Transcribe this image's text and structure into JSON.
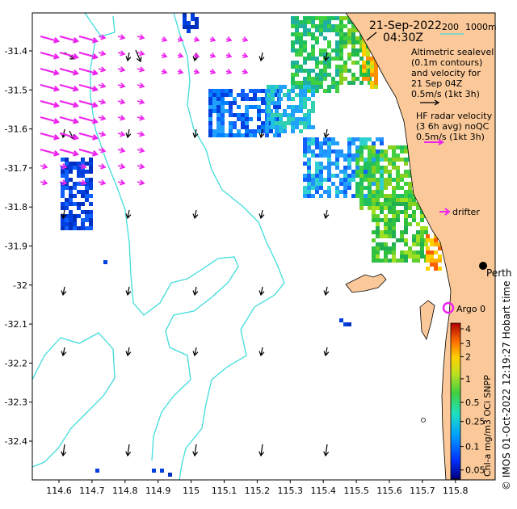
{
  "map": {
    "date": "21-Sep-2022",
    "time": "04:30Z",
    "lon_ticks": [
      "114.6",
      "114.7",
      "114.8",
      "114.9",
      "115",
      "115.1",
      "115.2",
      "115.3",
      "115.4",
      "115.5",
      "115.6",
      "115.7",
      "115.8"
    ],
    "lat_ticks": [
      "-31.4",
      "-31.5",
      "-31.6",
      "-31.7",
      "-31.8",
      "-31.9",
      "-32",
      "-32.1",
      "-32.2",
      "-32.3",
      "-32.4"
    ],
    "isobaths": [
      "200",
      "1000m"
    ],
    "altimetry_lines": [
      "Altimetric sealevel",
      "(0.1m contours)",
      "and velocity for",
      "21 Sep 04Z",
      "0.5m/s (1kt 3h)"
    ],
    "hf_radar_lines": [
      "HF radar velocity",
      "(3 6h avg) noQC",
      "0.5m/s (1kt 3h)"
    ],
    "drifter_label": "drifter",
    "argo_label": "Argo 0",
    "city_label": "Perth",
    "colorbar": {
      "title": "Chl-a mg/m3 OCi SNPP",
      "ticks": [
        "4",
        "3",
        "2",
        "1",
        "0.5",
        "0.25",
        "0.1",
        "0.05"
      ]
    },
    "credit": "© IMOS 01-Oct-2022 12:19:27 Hobart time",
    "colors": {
      "land": "#fbc999",
      "isobath": "#40dcdc",
      "hf_arrow": "#ee22ee",
      "argo": "#ee22ee"
    }
  }
}
